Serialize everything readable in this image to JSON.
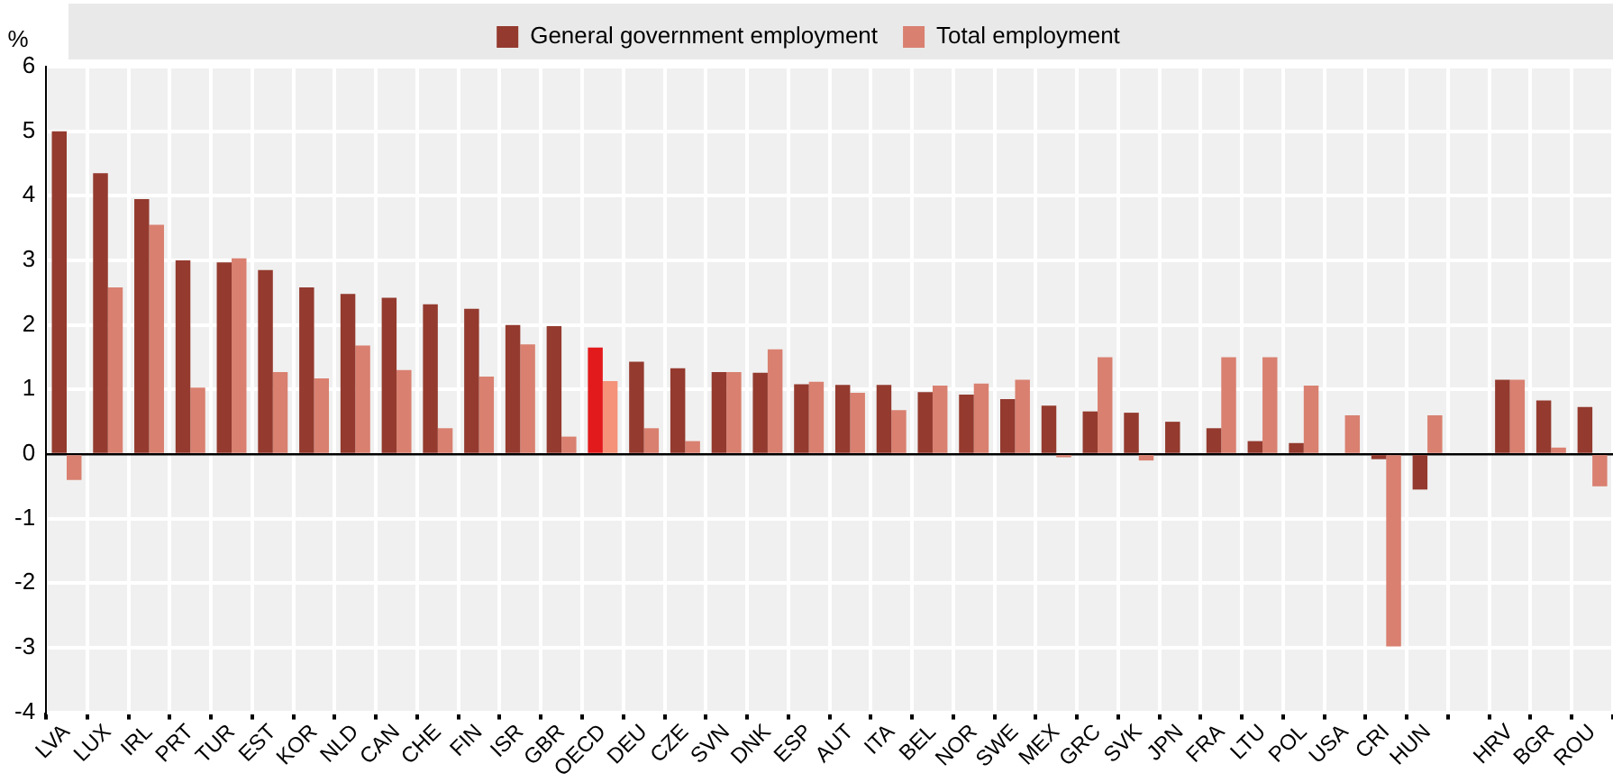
{
  "chart_data": {
    "type": "bar",
    "ylabel": "%",
    "categories": [
      "LVA",
      "LUX",
      "IRL",
      "PRT",
      "TUR",
      "EST",
      "KOR",
      "NLD",
      "CAN",
      "CHE",
      "FIN",
      "ISR",
      "GBR",
      "OECD",
      "DEU",
      "CZE",
      "SVN",
      "DNK",
      "ESP",
      "AUT",
      "ITA",
      "BEL",
      "NOR",
      "SWE",
      "MEX",
      "GRC",
      "SVK",
      "JPN",
      "FRA",
      "LTU",
      "POL",
      "USA",
      "CRI",
      "HUN",
      null,
      "HRV",
      "BGR",
      "ROU"
    ],
    "series": [
      {
        "name": "General government employment",
        "color": "#943a2e",
        "colors": [
          "#943a2e",
          "#943a2e",
          "#943a2e",
          "#943a2e",
          "#943a2e",
          "#943a2e",
          "#943a2e",
          "#943a2e",
          "#943a2e",
          "#943a2e",
          "#943a2e",
          "#943a2e",
          "#943a2e",
          "#e31a1c",
          "#943a2e",
          "#943a2e",
          "#943a2e",
          "#943a2e",
          "#943a2e",
          "#943a2e",
          "#943a2e",
          "#943a2e",
          "#943a2e",
          "#943a2e",
          "#943a2e",
          "#943a2e",
          "#943a2e",
          "#943a2e",
          "#943a2e",
          "#943a2e",
          "#943a2e",
          "#943a2e",
          "#943a2e",
          "#943a2e",
          "#943a2e",
          "#943a2e",
          "#943a2e",
          "#943a2e"
        ],
        "values": [
          5.0,
          4.35,
          3.95,
          3.0,
          2.97,
          2.85,
          2.58,
          2.48,
          2.42,
          2.32,
          2.25,
          2.0,
          1.98,
          1.65,
          1.43,
          1.33,
          1.27,
          1.26,
          1.08,
          1.07,
          1.07,
          0.96,
          0.92,
          0.85,
          0.75,
          0.66,
          0.64,
          0.5,
          0.4,
          0.2,
          0.17,
          null,
          -0.08,
          -0.55,
          null,
          1.15,
          0.83,
          0.73
        ]
      },
      {
        "name": "Total employment",
        "color": "#d98070",
        "colors": [
          "#d98070",
          "#d98070",
          "#d98070",
          "#d98070",
          "#d98070",
          "#d98070",
          "#d98070",
          "#d98070",
          "#d98070",
          "#d98070",
          "#d98070",
          "#d98070",
          "#d98070",
          "#f4937a",
          "#d98070",
          "#d98070",
          "#d98070",
          "#d98070",
          "#d98070",
          "#d98070",
          "#d98070",
          "#d98070",
          "#d98070",
          "#d98070",
          "#d98070",
          "#d98070",
          "#d98070",
          "#d98070",
          "#d98070",
          "#d98070",
          "#d98070",
          "#d98070",
          "#d98070",
          "#d98070",
          "#d98070",
          "#d98070",
          "#d98070",
          "#d98070"
        ],
        "values": [
          -0.4,
          2.58,
          3.55,
          1.03,
          3.03,
          1.27,
          1.17,
          1.68,
          1.3,
          0.4,
          1.2,
          1.7,
          0.27,
          1.13,
          0.4,
          0.2,
          1.27,
          1.62,
          1.12,
          0.95,
          0.68,
          1.06,
          1.09,
          1.15,
          -0.05,
          1.5,
          -0.1,
          null,
          1.5,
          1.5,
          1.06,
          0.6,
          -2.98,
          0.6,
          null,
          1.15,
          0.1,
          -0.5
        ]
      }
    ],
    "ylim": [
      -4,
      6
    ],
    "yticks": [
      -4,
      -3,
      -2,
      -1,
      0,
      1,
      2,
      3,
      4,
      5,
      6
    ],
    "grid": true,
    "legend": "top"
  }
}
